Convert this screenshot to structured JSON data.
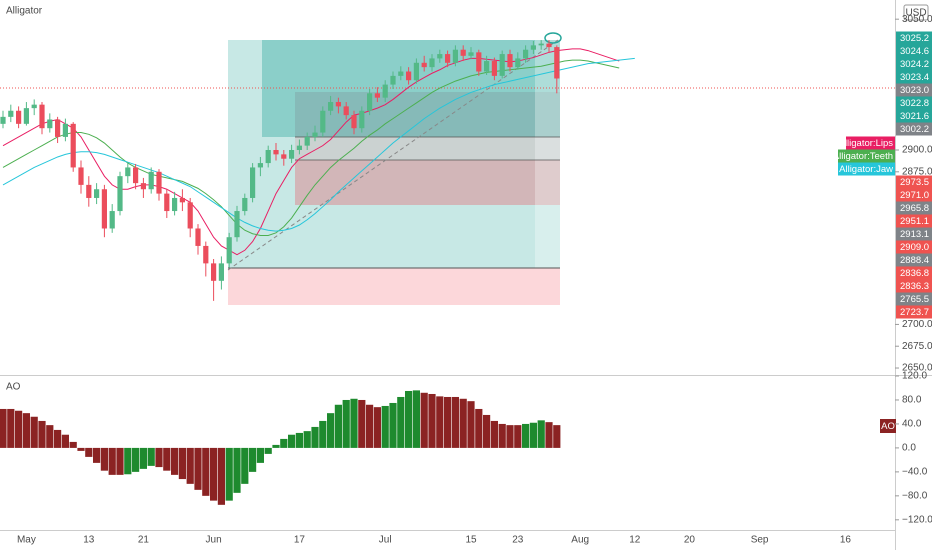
{
  "chart_data": [
    {
      "type": "candlestick",
      "title": "Alligator",
      "currency": "USD",
      "categories": [
        null,
        null,
        null,
        "May",
        null,
        null,
        null,
        null,
        null,
        null,
        null,
        "13",
        null,
        null,
        null,
        null,
        null,
        null,
        "21",
        null,
        null,
        null,
        null,
        null,
        null,
        null,
        null,
        "Jun",
        null,
        null,
        null,
        null,
        null,
        null,
        null,
        null,
        null,
        null,
        "17",
        null,
        null,
        null,
        null,
        null,
        null,
        null,
        null,
        null,
        null,
        "Jul",
        null,
        null,
        null,
        null,
        null,
        null,
        null,
        null,
        null,
        null,
        "15",
        null,
        null,
        null,
        null,
        null,
        "23",
        null,
        null,
        null,
        null,
        null,
        null,
        null,
        "Aug",
        null,
        null,
        null,
        null,
        null,
        null,
        "12",
        null,
        null,
        null,
        null,
        null,
        null,
        "20",
        null,
        null,
        null,
        null,
        null,
        null,
        null,
        null,
        "Sep",
        null,
        null,
        null,
        null,
        null,
        null,
        null,
        null,
        null,
        null,
        "16",
        null
      ],
      "open": [
        2930,
        2938,
        2945,
        2930,
        2948,
        2952,
        2925,
        2935,
        2915,
        2930,
        2880,
        2860,
        2845,
        2855,
        2810,
        2830,
        2870,
        2880,
        2862,
        2855,
        2875,
        2850,
        2830,
        2845,
        2840,
        2810,
        2790,
        2770,
        2750,
        2770,
        2800,
        2830,
        2845,
        2880,
        2885,
        2900,
        2895,
        2890,
        2900,
        2905,
        2915,
        2920,
        2945,
        2955,
        2950,
        2940,
        2925,
        2945,
        2965,
        2960,
        2975,
        2985,
        2990,
        2980,
        3000,
        2995,
        3005,
        3010,
        3000,
        3015,
        3008,
        3012,
        2990,
        3002,
        2985,
        3010,
        2995,
        3005,
        3015,
        3020,
        3022,
        3018,
        null,
        null,
        null,
        null,
        null,
        null,
        null,
        null,
        null,
        null,
        null,
        null,
        null,
        null,
        null,
        null,
        null,
        null,
        null,
        null,
        null,
        null,
        null,
        null,
        null,
        null,
        null,
        null,
        null,
        null,
        null,
        null,
        null,
        null,
        null,
        null,
        null,
        null
      ],
      "high": [
        2945,
        2952,
        2950,
        2955,
        2958,
        2955,
        2942,
        2938,
        2936,
        2932,
        2888,
        2870,
        2862,
        2860,
        2838,
        2875,
        2886,
        2884,
        2868,
        2880,
        2878,
        2855,
        2852,
        2855,
        2845,
        2815,
        2795,
        2775,
        2778,
        2805,
        2836,
        2850,
        2885,
        2892,
        2905,
        2908,
        2900,
        2906,
        2912,
        2920,
        2928,
        2950,
        2962,
        2960,
        2955,
        2945,
        2950,
        2970,
        2972,
        2980,
        2990,
        2996,
        2995,
        3005,
        3008,
        3010,
        3015,
        3014,
        3020,
        3020,
        3018,
        3015,
        3008,
        3006,
        3014,
        3015,
        3012,
        3020,
        3025,
        3026,
        3026,
        3020,
        null,
        null,
        null,
        null,
        null,
        null,
        null,
        null,
        null,
        null,
        null,
        null,
        null,
        null,
        null,
        null,
        null,
        null,
        null,
        null,
        null,
        null,
        null,
        null,
        null,
        null,
        null,
        null,
        null,
        null,
        null,
        null,
        null,
        null,
        null,
        null,
        null,
        null
      ],
      "low": [
        2925,
        2932,
        2925,
        2928,
        2940,
        2918,
        2920,
        2908,
        2910,
        2875,
        2850,
        2835,
        2838,
        2800,
        2805,
        2825,
        2862,
        2855,
        2845,
        2850,
        2842,
        2822,
        2825,
        2830,
        2800,
        2780,
        2755,
        2727,
        2740,
        2765,
        2795,
        2825,
        2840,
        2870,
        2880,
        2888,
        2882,
        2885,
        2895,
        2900,
        2910,
        2915,
        2940,
        2942,
        2935,
        2918,
        2920,
        2940,
        2955,
        2955,
        2970,
        2980,
        2975,
        2976,
        2990,
        2990,
        3000,
        2995,
        2996,
        3002,
        3004,
        2985,
        2986,
        2980,
        2982,
        2990,
        2992,
        3000,
        3010,
        3015,
        3012,
        2965,
        null,
        null,
        null,
        null,
        null,
        null,
        null,
        null,
        null,
        null,
        null,
        null,
        null,
        null,
        null,
        null,
        null,
        null,
        null,
        null,
        null,
        null,
        null,
        null,
        null,
        null,
        null,
        null,
        null,
        null,
        null,
        null,
        null,
        null,
        null,
        null,
        null,
        null
      ],
      "close": [
        2938,
        2945,
        2930,
        2948,
        2952,
        2925,
        2935,
        2915,
        2930,
        2880,
        2860,
        2845,
        2855,
        2810,
        2830,
        2870,
        2880,
        2862,
        2855,
        2875,
        2850,
        2830,
        2845,
        2840,
        2810,
        2790,
        2770,
        2750,
        2770,
        2800,
        2830,
        2845,
        2880,
        2885,
        2900,
        2895,
        2890,
        2900,
        2905,
        2915,
        2920,
        2945,
        2955,
        2950,
        2940,
        2925,
        2945,
        2965,
        2960,
        2975,
        2985,
        2990,
        2980,
        3000,
        2995,
        3005,
        3010,
        3000,
        3015,
        3008,
        3012,
        2990,
        3002,
        2985,
        3010,
        2995,
        3005,
        3015,
        3020,
        3022,
        3018,
        2982,
        null,
        null,
        null,
        null,
        null,
        null,
        null,
        null,
        null,
        null,
        null,
        null,
        null,
        null,
        null,
        null,
        null,
        null,
        null,
        null,
        null,
        null,
        null,
        null,
        null,
        null,
        null,
        null,
        null,
        null,
        null,
        null,
        null,
        null,
        null,
        null,
        null,
        null
      ],
      "up_color": "#53b987",
      "down_color": "#eb4d5c",
      "series": [
        {
          "name": "Alligator:Lips",
          "color": "#e91e63",
          "values": [
            2905,
            2910,
            2915,
            2920,
            2925,
            2930,
            2933,
            2935,
            2930,
            2925,
            2915,
            2900,
            2885,
            2870,
            2860,
            2855,
            2855,
            2858,
            2860,
            2860,
            2858,
            2855,
            2850,
            2845,
            2840,
            2830,
            2815,
            2800,
            2790,
            2785,
            2780,
            2785,
            2795,
            2810,
            2830,
            2850,
            2865,
            2880,
            2890,
            2895,
            2900,
            2905,
            2912,
            2922,
            2932,
            2940,
            2942,
            2945,
            2948,
            2952,
            2958,
            2965,
            2972,
            2978,
            2983,
            2988,
            2992,
            2997,
            3000,
            3003,
            3005,
            3005,
            3004,
            3003,
            3002,
            3001,
            3002,
            3004,
            3006,
            3009,
            3012,
            3014,
            3015,
            3016,
            3016,
            3014,
            3011,
            3008,
            3005,
            3002,
            null,
            null,
            null,
            null,
            null,
            null,
            null,
            null,
            null,
            null,
            null,
            null,
            null,
            null,
            null,
            null,
            null,
            null,
            null,
            null,
            null,
            null,
            null,
            null,
            null,
            null,
            null,
            null,
            null,
            null
          ]
        },
        {
          "name": "Alligator:Teeth",
          "color": "#4caf50",
          "values": [
            2880,
            2885,
            2890,
            2895,
            2900,
            2905,
            2910,
            2915,
            2918,
            2920,
            2920,
            2918,
            2914,
            2908,
            2900,
            2892,
            2885,
            2880,
            2876,
            2872,
            2870,
            2868,
            2866,
            2864,
            2860,
            2856,
            2850,
            2843,
            2835,
            2825,
            2815,
            2808,
            2804,
            2802,
            2802,
            2805,
            2812,
            2822,
            2835,
            2848,
            2860,
            2870,
            2880,
            2888,
            2895,
            2902,
            2910,
            2917,
            2923,
            2930,
            2936,
            2942,
            2948,
            2954,
            2960,
            2966,
            2971,
            2975,
            2979,
            2982,
            2985,
            2987,
            2989,
            2990,
            2991,
            2992,
            2993,
            2994,
            2995,
            2996,
            2998,
            3000,
            3002,
            3003,
            3003,
            3002,
            3000,
            2998,
            2996,
            2994,
            null,
            null,
            null,
            null,
            null,
            null,
            null,
            null,
            null,
            null,
            null,
            null,
            null,
            null,
            null,
            null,
            null,
            null,
            null,
            null,
            null,
            null,
            null,
            null,
            null,
            null,
            null,
            null,
            null,
            null
          ]
        },
        {
          "name": "Alligator:Jaw",
          "color": "#26c6da",
          "values": [
            2860,
            2865,
            2870,
            2875,
            2880,
            2884,
            2888,
            2892,
            2895,
            2897,
            2898,
            2898,
            2897,
            2895,
            2892,
            2889,
            2886,
            2883,
            2880,
            2877,
            2874,
            2870,
            2866,
            2862,
            2858,
            2852,
            2846,
            2840,
            2834,
            2828,
            2822,
            2817,
            2813,
            2810,
            2808,
            2807,
            2808,
            2810,
            2814,
            2820,
            2827,
            2835,
            2843,
            2852,
            2860,
            2868,
            2876,
            2884,
            2892,
            2900,
            2908,
            2915,
            2922,
            2929,
            2936,
            2942,
            2948,
            2953,
            2958,
            2962,
            2966,
            2969,
            2972,
            2975,
            2977,
            2979,
            2981,
            2983,
            2985,
            2987,
            2989,
            2991,
            2993,
            2995,
            2997,
            2999,
            3000,
            3001,
            3002,
            3003,
            3004,
            3005,
            null,
            null,
            null,
            null,
            null,
            null,
            null,
            null,
            null,
            null,
            null,
            null,
            null,
            null,
            null,
            null,
            null,
            null,
            null,
            null,
            null,
            null,
            null,
            null,
            null,
            null,
            null,
            null
          ]
        }
      ],
      "ylim": [
        2642,
        3072
      ],
      "yticks": [
        {
          "value": 2650,
          "label": "2650.0"
        },
        {
          "value": 2675,
          "label": "2675.0"
        },
        {
          "value": 2700,
          "label": "2700.0"
        },
        {
          "value": 2875,
          "label": "2875.0"
        },
        {
          "value": 2900,
          "label": "2900.0"
        },
        {
          "value": 3050,
          "label": "3050.0"
        }
      ],
      "price_labels": [
        3025.2,
        3024.6,
        3024.2,
        3023.4,
        {
          "value": 3023,
          "label": "3023.0"
        },
        3022.8,
        3021.6,
        3002.2,
        2973.5,
        {
          "value": 2971,
          "label": "2971.0"
        },
        2965.8,
        2951.1,
        2913.1,
        {
          "value": 2909,
          "label": "2909.0"
        },
        2888.4,
        2836.8,
        2836.3,
        2765.5,
        2723.7
      ],
      "price_label_colors": [
        "#26a69a",
        "#26a69a",
        "#26a69a",
        "#26a69a",
        "#7f8388",
        "#26a69a",
        "#26a69a",
        "#7f8388",
        "#ef5350",
        "#ef5350",
        "#7f8388",
        "#ef5350",
        "#7f8388",
        "#ef5350",
        "#7f8388",
        "#ef5350",
        "#ef5350",
        "#7f8388",
        "#ef5350"
      ]
    },
    {
      "type": "bar",
      "title": "AO",
      "badge": "AO",
      "up_color": "#1e8a2e",
      "down_color": "#8b2323",
      "values": [
        65,
        65,
        62,
        58,
        52,
        45,
        38,
        30,
        22,
        10,
        -5,
        -15,
        -25,
        -38,
        -45,
        -45,
        -44,
        -40,
        -35,
        -30,
        -32,
        -38,
        -45,
        -52,
        -60,
        -70,
        -80,
        -88,
        -95,
        -88,
        -75,
        -60,
        -40,
        -25,
        -10,
        5,
        15,
        22,
        25,
        28,
        35,
        45,
        58,
        72,
        80,
        82,
        80,
        72,
        68,
        70,
        75,
        85,
        95,
        96,
        92,
        90,
        86,
        85,
        85,
        82,
        78,
        65,
        55,
        45,
        40,
        38,
        38,
        40,
        42,
        46,
        43,
        38,
        null,
        null,
        null,
        null,
        null,
        null,
        null,
        null,
        null,
        null,
        null,
        null,
        null,
        null,
        null,
        null,
        null,
        null,
        null,
        null,
        null,
        null,
        null,
        null,
        null,
        null,
        null,
        null,
        null,
        null,
        null,
        null,
        null,
        null,
        null,
        null,
        null,
        null
      ],
      "ylim": [
        -137,
        120
      ],
      "yticks": [
        {
          "value": 120,
          "label": "120.0"
        },
        {
          "value": 80,
          "label": "80.0"
        },
        {
          "value": 40,
          "label": "40.0"
        },
        {
          "value": 0,
          "label": "0.0"
        },
        {
          "value": -40,
          "label": "−40.0"
        },
        {
          "value": -80,
          "label": "−80.0"
        },
        {
          "value": -120,
          "label": "−120.0"
        }
      ]
    }
  ]
}
